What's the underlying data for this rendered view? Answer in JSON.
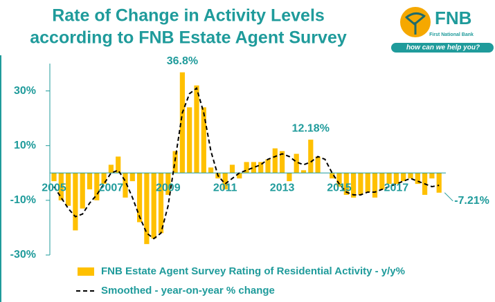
{
  "chart_data": {
    "type": "bar",
    "title_lines": [
      "Rate of Change in Activity Levels",
      "according to FNB Estate Agent Survey"
    ],
    "logo": {
      "name": "FNB",
      "subtitle": "First National Bank",
      "tagline": "how can we help you?"
    },
    "categories": [
      "2005",
      null,
      null,
      null,
      null,
      null,
      null,
      null,
      "2007",
      null,
      null,
      null,
      null,
      null,
      null,
      null,
      "2009",
      null,
      null,
      null,
      null,
      null,
      null,
      null,
      "2011",
      null,
      null,
      null,
      null,
      null,
      null,
      null,
      "2013",
      null,
      null,
      null,
      null,
      null,
      null,
      null,
      "2015",
      null,
      null,
      null,
      null,
      null,
      null,
      null,
      "2017",
      null,
      null,
      null,
      null,
      null,
      null
    ],
    "series": [
      {
        "name": "FNB Estate Agent Survey Rating of Residential Activity - y/y%",
        "color": "#ffc000",
        "kind": "bar",
        "values": [
          -3,
          -10,
          -12,
          -21,
          -13,
          -6,
          -10,
          -4,
          3,
          6,
          -9,
          -3,
          -18,
          -26,
          -24,
          -22,
          -8,
          8,
          36.8,
          24,
          32,
          24,
          2,
          -2,
          -6,
          3,
          -2,
          4,
          4,
          4,
          5,
          9,
          8,
          -3,
          7,
          1,
          12.18,
          6,
          0,
          -2,
          -5,
          -8,
          -9,
          -8,
          -7,
          -9,
          -6,
          -4,
          -4,
          -3,
          -2,
          -4,
          -8,
          -2,
          -7.21
        ],
        "value_labels": [
          null,
          null,
          null,
          null,
          null,
          null,
          null,
          null,
          null,
          null,
          null,
          null,
          null,
          null,
          null,
          null,
          null,
          null,
          "36.8%",
          null,
          null,
          null,
          null,
          null,
          null,
          null,
          null,
          null,
          null,
          null,
          null,
          null,
          null,
          null,
          null,
          null,
          "12.18%",
          null,
          null,
          null,
          null,
          null,
          null,
          null,
          null,
          null,
          null,
          null,
          null,
          null,
          null,
          null,
          null,
          null,
          "-7.21%"
        ]
      },
      {
        "name": "Smoothed - year-on-year % change",
        "color": "#000000",
        "kind": "line",
        "dash": true,
        "values": [
          -5,
          -9,
          -13,
          -16,
          -15,
          -11,
          -8,
          -4,
          0,
          1,
          -3,
          -9,
          -16,
          -22,
          -24,
          -22,
          -12,
          5,
          22,
          29,
          31,
          22,
          8,
          -1,
          -4,
          -2,
          0,
          1,
          2,
          3,
          5,
          6,
          7,
          6,
          4,
          3,
          4,
          6,
          5,
          0,
          -4,
          -7,
          -8,
          -8,
          -7,
          -7,
          -6,
          -5,
          -4,
          -3,
          -2,
          -3,
          -4,
          -5,
          -4.5
        ]
      }
    ],
    "ylim": [
      -30,
      40
    ],
    "yticks": [
      {
        "value": -30,
        "label": "-30%"
      },
      {
        "value": -10,
        "label": "-10%"
      },
      {
        "value": 10,
        "label": "10%"
      },
      {
        "value": 30,
        "label": "30%"
      }
    ],
    "legend": "bottom"
  }
}
